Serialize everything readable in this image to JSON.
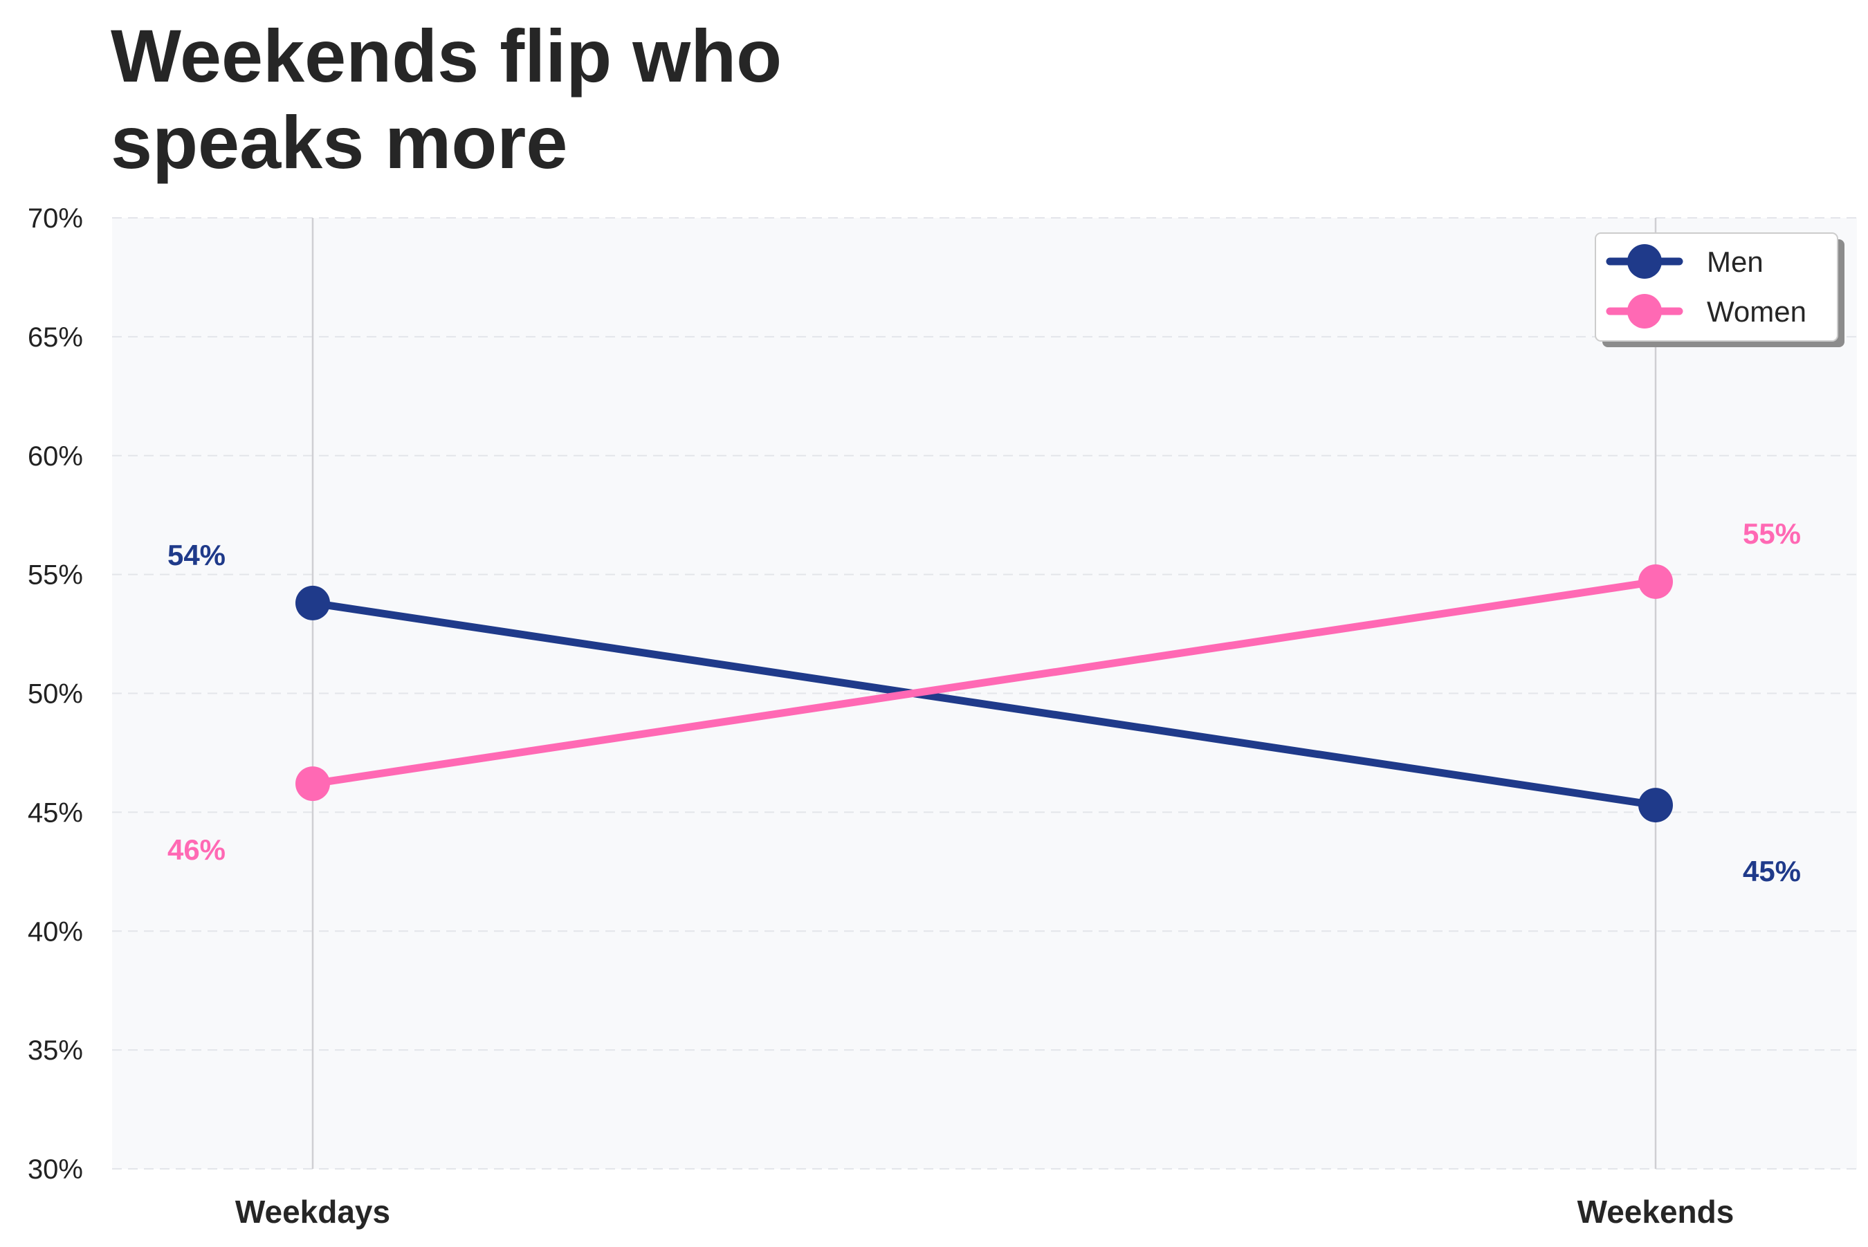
{
  "chart_data": {
    "type": "line",
    "title": "Weekends flip who\nspeaks more",
    "xlabel": "",
    "ylabel": "",
    "categories": [
      "Weekdays",
      "Weekends"
    ],
    "ylim": [
      30,
      70
    ],
    "yticks": [
      30,
      35,
      40,
      45,
      50,
      55,
      60,
      65,
      70
    ],
    "ytick_labels": [
      "30%",
      "35%",
      "40%",
      "45%",
      "50%",
      "55%",
      "60%",
      "65%",
      "70%"
    ],
    "series": [
      {
        "name": "Men",
        "values": [
          53.8,
          45.3
        ],
        "labels": [
          "54%",
          "45%"
        ],
        "color": "#1f3a8a"
      },
      {
        "name": "Women",
        "values": [
          46.2,
          54.7
        ],
        "labels": [
          "46%",
          "55%"
        ],
        "color": "#ff69b4"
      }
    ],
    "grid": "horizontal-dashed",
    "legend": "top-right",
    "plot_background": "#f8f9fb"
  }
}
